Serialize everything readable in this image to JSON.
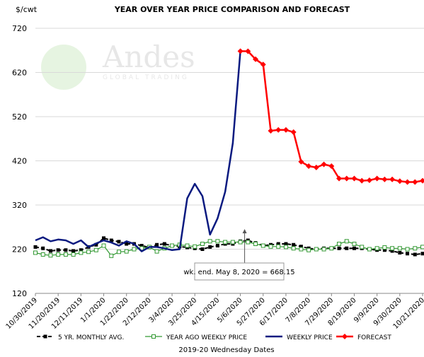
{
  "chart_data": {
    "type": "line",
    "title": "YEAR OVER YEAR PRICE COMPARISON AND FORECAST",
    "y_unit": "$/cwt",
    "x_label": "2019-20 Wednesday Dates",
    "watermark": "Andes",
    "watermark_sub": "GLOBAL TRADING",
    "annotation": "wk. end. May 8, 2020  = 668.15",
    "ylim": [
      120,
      720
    ],
    "yticks": [
      120,
      220,
      320,
      420,
      520,
      620,
      720
    ],
    "grid": true,
    "legend": "bottom",
    "categories": [
      "10/30/2019",
      null,
      null,
      "11/20/2019",
      null,
      null,
      "12/11/2019",
      null,
      null,
      "1/1/2020",
      null,
      null,
      "1/22/2020",
      null,
      null,
      "2/12/2020",
      null,
      null,
      "3/4/2020",
      null,
      null,
      "3/25/2020",
      null,
      null,
      "4/15/2020",
      null,
      null,
      "5/6/2020",
      null,
      null,
      "5/27/2020",
      null,
      null,
      "6/17/2020",
      null,
      null,
      "7/8/2020",
      null,
      null,
      "7/29/2020",
      null,
      null,
      "8/19/2020",
      null,
      null,
      "9/9/2020",
      null,
      null,
      "9/30/2020",
      null,
      null,
      "10/21/2020"
    ],
    "series": [
      {
        "name": "5 YR. MONTHLY AVG.",
        "color": "#000000",
        "style": "dashed",
        "marker": "square",
        "values": [
          225,
          222,
          216,
          218,
          218,
          216,
          218,
          225,
          230,
          245,
          240,
          237,
          232,
          232,
          228,
          224,
          230,
          232,
          228,
          226,
          224,
          222,
          220,
          225,
          228,
          232,
          232,
          238,
          240,
          234,
          228,
          230,
          232,
          232,
          230,
          226,
          222,
          220,
          222,
          222,
          222,
          222,
          222,
          222,
          220,
          218,
          218,
          216,
          212,
          210,
          208,
          210
        ]
      },
      {
        "name": "YEAR AGO WEEKLY PRICE",
        "color": "#339933",
        "style": "solid",
        "marker": "hollow-square",
        "values": [
          212,
          208,
          206,
          208,
          208,
          208,
          212,
          214,
          218,
          228,
          205,
          214,
          215,
          220,
          222,
          225,
          215,
          222,
          228,
          230,
          228,
          226,
          232,
          238,
          238,
          236,
          236,
          236,
          236,
          232,
          228,
          226,
          226,
          225,
          222,
          220,
          218,
          220,
          220,
          222,
          232,
          238,
          232,
          225,
          220,
          222,
          224,
          222,
          222,
          220,
          222,
          225
        ]
      },
      {
        "name": "WEEKLY PRICE",
        "color": "#0a1a80",
        "style": "thick",
        "marker": "none",
        "values": [
          240,
          247,
          238,
          242,
          240,
          232,
          240,
          225,
          233,
          240,
          235,
          228,
          238,
          232,
          215,
          225,
          225,
          222,
          218,
          220,
          335,
          368,
          340,
          253,
          290,
          350,
          460,
          668.15,
          null,
          null,
          null,
          null,
          null,
          null,
          null,
          null,
          null,
          null,
          null,
          null,
          null,
          null,
          null,
          null,
          null,
          null,
          null,
          null,
          null,
          null,
          null,
          null
        ]
      },
      {
        "name": "FORECAST",
        "color": "#ff0000",
        "style": "thick",
        "marker": "diamond",
        "values": [
          null,
          null,
          null,
          null,
          null,
          null,
          null,
          null,
          null,
          null,
          null,
          null,
          null,
          null,
          null,
          null,
          null,
          null,
          null,
          null,
          null,
          null,
          null,
          null,
          null,
          null,
          null,
          668.15,
          668,
          650,
          638,
          488,
          490,
          490,
          485,
          418,
          408,
          405,
          412,
          408,
          380,
          380,
          380,
          375,
          376,
          380,
          378,
          378,
          374,
          372,
          372,
          375
        ]
      }
    ]
  }
}
